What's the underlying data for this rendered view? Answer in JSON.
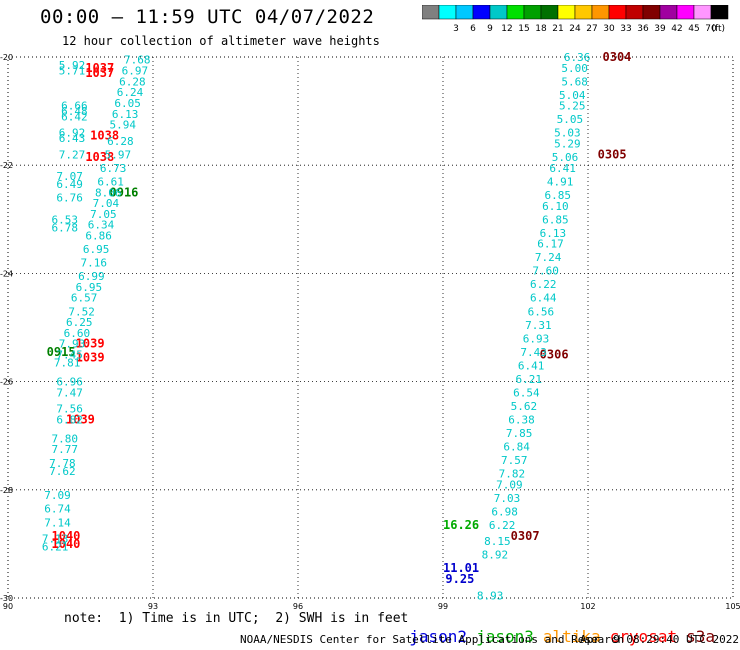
{
  "header": {
    "title": "00:00 – 11:59 UTC 04/07/2022",
    "subtitle": "12 hour collection of altimeter wave heights"
  },
  "color_scale": {
    "unit_label": "(ft)",
    "bins": [
      {
        "color": "#808080",
        "label": ""
      },
      {
        "color": "#00ffff",
        "label": "3"
      },
      {
        "color": "#00c8ff",
        "label": "6"
      },
      {
        "color": "#0000ff",
        "label": "9"
      },
      {
        "color": "#00c8c8",
        "label": "12"
      },
      {
        "color": "#00e000",
        "label": "15"
      },
      {
        "color": "#00a000",
        "label": "18"
      },
      {
        "color": "#007000",
        "label": "21"
      },
      {
        "color": "#ffff00",
        "label": "24"
      },
      {
        "color": "#ffc800",
        "label": "27"
      },
      {
        "color": "#ff9600",
        "label": "30"
      },
      {
        "color": "#ff0000",
        "label": "33"
      },
      {
        "color": "#c00000",
        "label": "36"
      },
      {
        "color": "#800000",
        "label": "39"
      },
      {
        "color": "#a000a0",
        "label": "42"
      },
      {
        "color": "#ff00ff",
        "label": "45"
      },
      {
        "color": "#ff96ff",
        "label": "70"
      },
      {
        "color": "#000000",
        "label": ""
      }
    ]
  },
  "chart_data": {
    "type": "scatter",
    "title": "00:00 – 11:59 UTC 04/07/2022",
    "subtitle": "12 hour collection of altimeter wave heights",
    "xlabel": "",
    "ylabel": "",
    "xlim": [
      90,
      105
    ],
    "ylim": [
      -30,
      -20
    ],
    "x_ticks": [
      90,
      93,
      96,
      99,
      102,
      105
    ],
    "y_ticks": [
      -20,
      -22,
      -24,
      -26,
      -28,
      -30
    ],
    "grid": true,
    "series": [
      {
        "name": "jason2",
        "points": [
          {
            "x": 99.0,
            "y": -29.45,
            "label": "11.01",
            "color": "#0000cc"
          },
          {
            "x": 99.05,
            "y": -29.65,
            "label": "9.25",
            "color": "#0000cc"
          }
        ]
      },
      {
        "name": "jason3",
        "points": [
          {
            "x": 99.0,
            "y": -28.65,
            "label": "16.26",
            "color": "#00aa00"
          }
        ]
      },
      {
        "name": "cryosat",
        "points": [
          {
            "x": 91.6,
            "y": -20.2,
            "label": "1037",
            "color": "#ff0000"
          },
          {
            "x": 91.6,
            "y": -20.3,
            "label": "1037",
            "color": "#ff0000"
          },
          {
            "x": 91.7,
            "y": -21.45,
            "label": "1038",
            "color": "#ff0000"
          },
          {
            "x": 91.6,
            "y": -21.85,
            "label": "1038",
            "color": "#ff0000"
          },
          {
            "x": 91.4,
            "y": -25.3,
            "label": "1039",
            "color": "#ff0000"
          },
          {
            "x": 91.4,
            "y": -25.55,
            "label": "1039",
            "color": "#ff0000"
          },
          {
            "x": 91.2,
            "y": -26.7,
            "label": "1039",
            "color": "#ff0000"
          },
          {
            "x": 90.9,
            "y": -28.85,
            "label": "1040",
            "color": "#ff0000"
          },
          {
            "x": 90.9,
            "y": -29.0,
            "label": "1040",
            "color": "#ff0000"
          }
        ]
      },
      {
        "name": "s3a",
        "points": [
          {
            "x": 92.1,
            "y": -22.5,
            "label": "0916",
            "color": "#008000"
          },
          {
            "x": 90.8,
            "y": -25.45,
            "label": "0915",
            "color": "#008000"
          },
          {
            "x": 102.3,
            "y": -20.0,
            "label": "0304",
            "color": "#800000"
          },
          {
            "x": 102.2,
            "y": -21.8,
            "label": "0305",
            "color": "#800000"
          },
          {
            "x": 101.0,
            "y": -25.5,
            "label": "0306",
            "color": "#800000"
          },
          {
            "x": 100.4,
            "y": -28.85,
            "label": "0307",
            "color": "#800000"
          }
        ]
      },
      {
        "name": "swh_labels",
        "points": [
          {
            "x": 101.5,
            "y": -20.0,
            "label": "6.36",
            "color": "#00c8c8"
          },
          {
            "x": 101.45,
            "y": -20.2,
            "label": "5.00",
            "color": "#00c8c8"
          },
          {
            "x": 101.45,
            "y": -20.45,
            "label": "5.68",
            "color": "#00c8c8"
          },
          {
            "x": 101.4,
            "y": -20.7,
            "label": "5.04",
            "color": "#00c8c8"
          },
          {
            "x": 101.4,
            "y": -20.9,
            "label": "5.25",
            "color": "#00c8c8"
          },
          {
            "x": 101.35,
            "y": -21.15,
            "label": "5.05",
            "color": "#00c8c8"
          },
          {
            "x": 101.3,
            "y": -21.4,
            "label": "5.03",
            "color": "#00c8c8"
          },
          {
            "x": 101.3,
            "y": -21.6,
            "label": "5.29",
            "color": "#00c8c8"
          },
          {
            "x": 101.25,
            "y": -21.85,
            "label": "5.06",
            "color": "#00c8c8"
          },
          {
            "x": 101.2,
            "y": -22.05,
            "label": "6.41",
            "color": "#00c8c8"
          },
          {
            "x": 101.15,
            "y": -22.3,
            "label": "4.91",
            "color": "#00c8c8"
          },
          {
            "x": 101.1,
            "y": -22.55,
            "label": "6.85",
            "color": "#00c8c8"
          },
          {
            "x": 101.05,
            "y": -22.75,
            "label": "6.10",
            "color": "#00c8c8"
          },
          {
            "x": 101.05,
            "y": -23.0,
            "label": "6.85",
            "color": "#00c8c8"
          },
          {
            "x": 101.0,
            "y": -23.25,
            "label": "6.13",
            "color": "#00c8c8"
          },
          {
            "x": 100.95,
            "y": -23.45,
            "label": "6.17",
            "color": "#00c8c8"
          },
          {
            "x": 100.9,
            "y": -23.7,
            "label": "7.24",
            "color": "#00c8c8"
          },
          {
            "x": 100.85,
            "y": -23.95,
            "label": "7.60",
            "color": "#00c8c8"
          },
          {
            "x": 100.8,
            "y": -24.2,
            "label": "6.22",
            "color": "#00c8c8"
          },
          {
            "x": 100.8,
            "y": -24.45,
            "label": "6.44",
            "color": "#00c8c8"
          },
          {
            "x": 100.75,
            "y": -24.7,
            "label": "6.56",
            "color": "#00c8c8"
          },
          {
            "x": 100.7,
            "y": -24.95,
            "label": "7.31",
            "color": "#00c8c8"
          },
          {
            "x": 100.65,
            "y": -25.2,
            "label": "6.93",
            "color": "#00c8c8"
          },
          {
            "x": 100.6,
            "y": -25.45,
            "label": "7.43",
            "color": "#00c8c8"
          },
          {
            "x": 100.55,
            "y": -25.7,
            "label": "6.41",
            "color": "#00c8c8"
          },
          {
            "x": 100.5,
            "y": -25.95,
            "label": "6.21",
            "color": "#00c8c8"
          },
          {
            "x": 100.45,
            "y": -26.2,
            "label": "6.54",
            "color": "#00c8c8"
          },
          {
            "x": 100.4,
            "y": -26.45,
            "label": "5.62",
            "color": "#00c8c8"
          },
          {
            "x": 100.35,
            "y": -26.7,
            "label": "6.38",
            "color": "#00c8c8"
          },
          {
            "x": 100.3,
            "y": -26.95,
            "label": "7.85",
            "color": "#00c8c8"
          },
          {
            "x": 100.25,
            "y": -27.2,
            "label": "6.84",
            "color": "#00c8c8"
          },
          {
            "x": 100.2,
            "y": -27.45,
            "label": "7.57",
            "color": "#00c8c8"
          },
          {
            "x": 100.15,
            "y": -27.7,
            "label": "7.82",
            "color": "#00c8c8"
          },
          {
            "x": 100.1,
            "y": -27.9,
            "label": "7.09",
            "color": "#00c8c8"
          },
          {
            "x": 100.05,
            "y": -28.15,
            "label": "7.03",
            "color": "#00c8c8"
          },
          {
            "x": 100.0,
            "y": -28.4,
            "label": "6.98",
            "color": "#00c8c8"
          },
          {
            "x": 99.95,
            "y": -28.65,
            "label": "6.22",
            "color": "#00c8c8"
          },
          {
            "x": 99.85,
            "y": -28.95,
            "label": "8.15",
            "color": "#00c8c8"
          },
          {
            "x": 99.8,
            "y": -29.2,
            "label": "8.92",
            "color": "#00c8c8"
          },
          {
            "x": 99.7,
            "y": -29.95,
            "label": "8.93",
            "color": "#00c8c8"
          },
          {
            "x": 91.05,
            "y": -20.15,
            "label": "5.92",
            "color": "#00c8c8"
          },
          {
            "x": 91.05,
            "y": -20.25,
            "label": "5.71",
            "color": "#00c8c8"
          },
          {
            "x": 92.4,
            "y": -20.05,
            "label": "7.68",
            "color": "#00c8c8"
          },
          {
            "x": 92.35,
            "y": -20.25,
            "label": "6.97",
            "color": "#00c8c8"
          },
          {
            "x": 92.3,
            "y": -20.45,
            "label": "6.28",
            "color": "#00c8c8"
          },
          {
            "x": 92.25,
            "y": -20.65,
            "label": "6.24",
            "color": "#00c8c8"
          },
          {
            "x": 92.2,
            "y": -20.85,
            "label": "6.05",
            "color": "#00c8c8"
          },
          {
            "x": 92.15,
            "y": -21.05,
            "label": "6.13",
            "color": "#00c8c8"
          },
          {
            "x": 92.1,
            "y": -21.25,
            "label": "5.94",
            "color": "#00c8c8"
          },
          {
            "x": 92.05,
            "y": -21.55,
            "label": "6.28",
            "color": "#00c8c8"
          },
          {
            "x": 92.0,
            "y": -21.8,
            "label": "5.97",
            "color": "#00c8c8"
          },
          {
            "x": 91.9,
            "y": -22.05,
            "label": "6.73",
            "color": "#00c8c8"
          },
          {
            "x": 91.85,
            "y": -22.3,
            "label": "6.61",
            "color": "#00c8c8"
          },
          {
            "x": 91.8,
            "y": -22.5,
            "label": "8.06",
            "color": "#00c8c8"
          },
          {
            "x": 91.75,
            "y": -22.7,
            "label": "7.04",
            "color": "#00c8c8"
          },
          {
            "x": 91.7,
            "y": -22.9,
            "label": "7.05",
            "color": "#00c8c8"
          },
          {
            "x": 91.65,
            "y": -23.1,
            "label": "6.34",
            "color": "#00c8c8"
          },
          {
            "x": 91.6,
            "y": -23.3,
            "label": "6.86",
            "color": "#00c8c8"
          },
          {
            "x": 91.55,
            "y": -23.55,
            "label": "6.95",
            "color": "#00c8c8"
          },
          {
            "x": 91.5,
            "y": -23.8,
            "label": "7.16",
            "color": "#00c8c8"
          },
          {
            "x": 91.45,
            "y": -24.05,
            "label": "6.99",
            "color": "#00c8c8"
          },
          {
            "x": 91.4,
            "y": -24.25,
            "label": "6.95",
            "color": "#00c8c8"
          },
          {
            "x": 91.3,
            "y": -24.45,
            "label": "6.57",
            "color": "#00c8c8"
          },
          {
            "x": 91.25,
            "y": -24.7,
            "label": "7.52",
            "color": "#00c8c8"
          },
          {
            "x": 91.2,
            "y": -24.9,
            "label": "6.25",
            "color": "#00c8c8"
          },
          {
            "x": 91.15,
            "y": -25.1,
            "label": "6.60",
            "color": "#00c8c8"
          },
          {
            "x": 91.05,
            "y": -25.3,
            "label": "7.93",
            "color": "#00c8c8"
          },
          {
            "x": 91.0,
            "y": -25.5,
            "label": "7.45",
            "color": "#00c8c8"
          },
          {
            "x": 90.95,
            "y": -25.65,
            "label": "7.81",
            "color": "#00c8c8"
          },
          {
            "x": 91.0,
            "y": -26.0,
            "label": "6.96",
            "color": "#00c8c8"
          },
          {
            "x": 91.0,
            "y": -26.2,
            "label": "7.47",
            "color": "#00c8c8"
          },
          {
            "x": 91.0,
            "y": -26.5,
            "label": "7.56",
            "color": "#00c8c8"
          },
          {
            "x": 91.0,
            "y": -26.7,
            "label": "6.82",
            "color": "#00c8c8"
          },
          {
            "x": 90.9,
            "y": -27.05,
            "label": "7.80",
            "color": "#00c8c8"
          },
          {
            "x": 90.9,
            "y": -27.25,
            "label": "7.77",
            "color": "#00c8c8"
          },
          {
            "x": 90.85,
            "y": -27.5,
            "label": "7.78",
            "color": "#00c8c8"
          },
          {
            "x": 90.85,
            "y": -27.65,
            "label": "7.62",
            "color": "#00c8c8"
          },
          {
            "x": 90.75,
            "y": -28.1,
            "label": "7.09",
            "color": "#00c8c8"
          },
          {
            "x": 90.75,
            "y": -28.35,
            "label": "6.74",
            "color": "#00c8c8"
          },
          {
            "x": 90.75,
            "y": -28.6,
            "label": "7.14",
            "color": "#00c8c8"
          },
          {
            "x": 90.7,
            "y": -28.9,
            "label": "7.13",
            "color": "#00c8c8"
          },
          {
            "x": 90.7,
            "y": -29.05,
            "label": "6.21",
            "color": "#00c8c8"
          },
          {
            "x": 91.1,
            "y": -20.9,
            "label": "6.66",
            "color": "#00c8c8"
          },
          {
            "x": 91.1,
            "y": -21.0,
            "label": "6.48",
            "color": "#00c8c8"
          },
          {
            "x": 91.1,
            "y": -21.1,
            "label": "6.42",
            "color": "#00c8c8"
          },
          {
            "x": 91.05,
            "y": -21.4,
            "label": "6.92",
            "color": "#00c8c8"
          },
          {
            "x": 91.05,
            "y": -21.5,
            "label": "6.43",
            "color": "#00c8c8"
          },
          {
            "x": 91.05,
            "y": -21.8,
            "label": "7.27",
            "color": "#00c8c8"
          },
          {
            "x": 91.0,
            "y": -22.2,
            "label": "7.07",
            "color": "#00c8c8"
          },
          {
            "x": 91.0,
            "y": -22.35,
            "label": "6.49",
            "color": "#00c8c8"
          },
          {
            "x": 91.0,
            "y": -22.6,
            "label": "6.76",
            "color": "#00c8c8"
          },
          {
            "x": 90.9,
            "y": -23.0,
            "label": "6.53",
            "color": "#00c8c8"
          },
          {
            "x": 90.9,
            "y": -23.15,
            "label": "6.78",
            "color": "#00c8c8"
          }
        ]
      }
    ]
  },
  "footer": {
    "note": "note:  1) Time is in UTC;  2) SWH is in feet",
    "missions": [
      {
        "name": "jason2",
        "color": "#0000dd"
      },
      {
        "name": "jason3",
        "color": "#00aa00"
      },
      {
        "name": "altika",
        "color": "#ff9600"
      },
      {
        "name": "cryosat",
        "color": "#ff0000"
      },
      {
        "name": "s3a",
        "color": "#800000"
      }
    ],
    "credit": "NOAA/NESDIS Center for Satellite Applications and Research",
    "timestamp": "Apr  9 08:29:40 UTC 2022"
  }
}
